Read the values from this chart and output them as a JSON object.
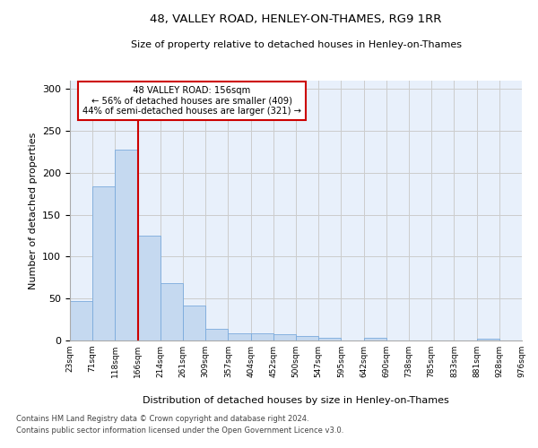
{
  "title1": "48, VALLEY ROAD, HENLEY-ON-THAMES, RG9 1RR",
  "title2": "Size of property relative to detached houses in Henley-on-Thames",
  "xlabel": "Distribution of detached houses by size in Henley-on-Thames",
  "ylabel": "Number of detached properties",
  "bar_values": [
    47,
    184,
    228,
    125,
    68,
    42,
    14,
    9,
    9,
    7,
    5,
    3,
    0,
    3,
    0,
    0,
    0,
    0,
    2,
    0
  ],
  "x_labels": [
    "23sqm",
    "71sqm",
    "118sqm",
    "166sqm",
    "214sqm",
    "261sqm",
    "309sqm",
    "357sqm",
    "404sqm",
    "452sqm",
    "500sqm",
    "547sqm",
    "595sqm",
    "642sqm",
    "690sqm",
    "738sqm",
    "785sqm",
    "833sqm",
    "881sqm",
    "928sqm",
    "976sqm"
  ],
  "bar_color": "#c5d9f0",
  "bar_edge_color": "#7aaadc",
  "property_line_x": 3.0,
  "annotation_text": "  48 VALLEY ROAD: 156sqm  \n← 56% of detached houses are smaller (409)\n44% of semi-detached houses are larger (321) →",
  "annotation_box_color": "#ffffff",
  "annotation_box_edge": "#cc0000",
  "line_color": "#cc0000",
  "footnote1": "Contains HM Land Registry data © Crown copyright and database right 2024.",
  "footnote2": "Contains public sector information licensed under the Open Government Licence v3.0.",
  "ylim": [
    0,
    310
  ],
  "yticks": [
    0,
    50,
    100,
    150,
    200,
    250,
    300
  ],
  "grid_color": "#cccccc",
  "bg_color": "#e8f0fb"
}
